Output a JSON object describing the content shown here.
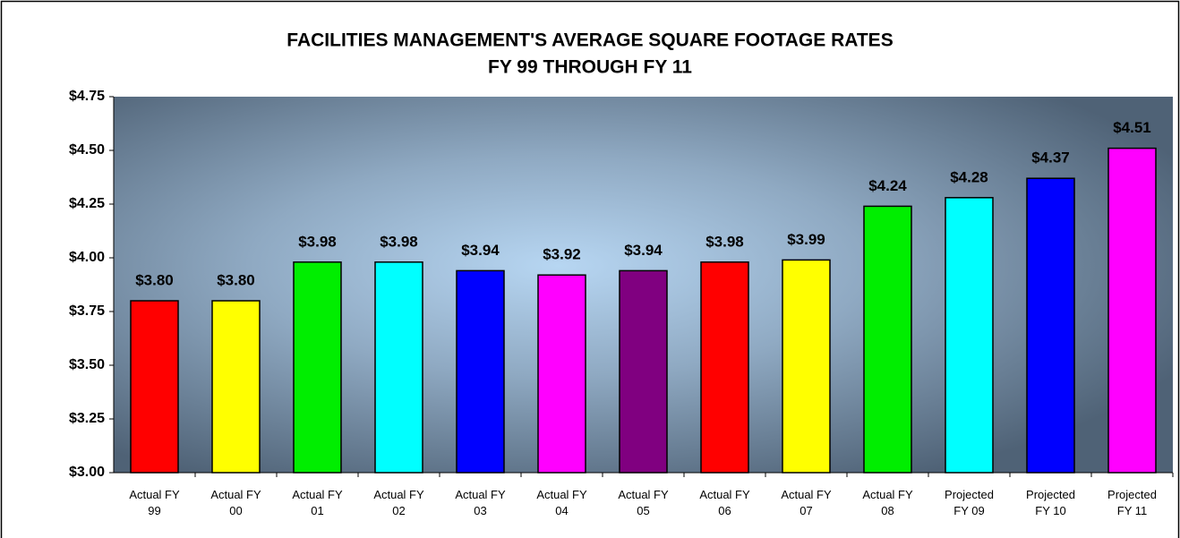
{
  "chart_data": {
    "type": "bar",
    "title": "FACILITIES MANAGEMENT'S AVERAGE SQUARE FOOTAGE RATES",
    "subtitle": "FY 99 THROUGH FY 11",
    "categories": [
      "Actual FY 99",
      "Actual FY 00",
      "Actual FY 01",
      "Actual FY 02",
      "Actual FY 03",
      "Actual FY 04",
      "Actual FY 05",
      "Actual FY 06",
      "Actual FY 07",
      "Actual FY 08",
      "Projected FY 09",
      "Projected FY 10",
      "Projected FY 11"
    ],
    "values": [
      3.8,
      3.8,
      3.98,
      3.98,
      3.94,
      3.92,
      3.94,
      3.98,
      3.99,
      4.24,
      4.28,
      4.37,
      4.51
    ],
    "value_labels": [
      "$3.80",
      "$3.80",
      "$3.98",
      "$3.98",
      "$3.94",
      "$3.92",
      "$3.94",
      "$3.98",
      "$3.99",
      "$4.24",
      "$4.28",
      "$4.37",
      "$4.51"
    ],
    "colors": [
      "#ff0000",
      "#ffff00",
      "#00ee00",
      "#00ffff",
      "#0000ff",
      "#ff00ff",
      "#800080",
      "#ff0000",
      "#ffff00",
      "#00ee00",
      "#00ffff",
      "#0000ff",
      "#ff00ff"
    ],
    "ylim": [
      3.0,
      4.75
    ],
    "yticks": [
      {
        "value": 3.0,
        "label": "$3.00"
      },
      {
        "value": 3.25,
        "label": "$3.25"
      },
      {
        "value": 3.5,
        "label": "$3.50"
      },
      {
        "value": 3.75,
        "label": "$3.75"
      },
      {
        "value": 4.0,
        "label": "$4.00"
      },
      {
        "value": 4.25,
        "label": "$4.25"
      },
      {
        "value": 4.5,
        "label": "$4.50"
      },
      {
        "value": 4.75,
        "label": "$4.75"
      }
    ]
  }
}
